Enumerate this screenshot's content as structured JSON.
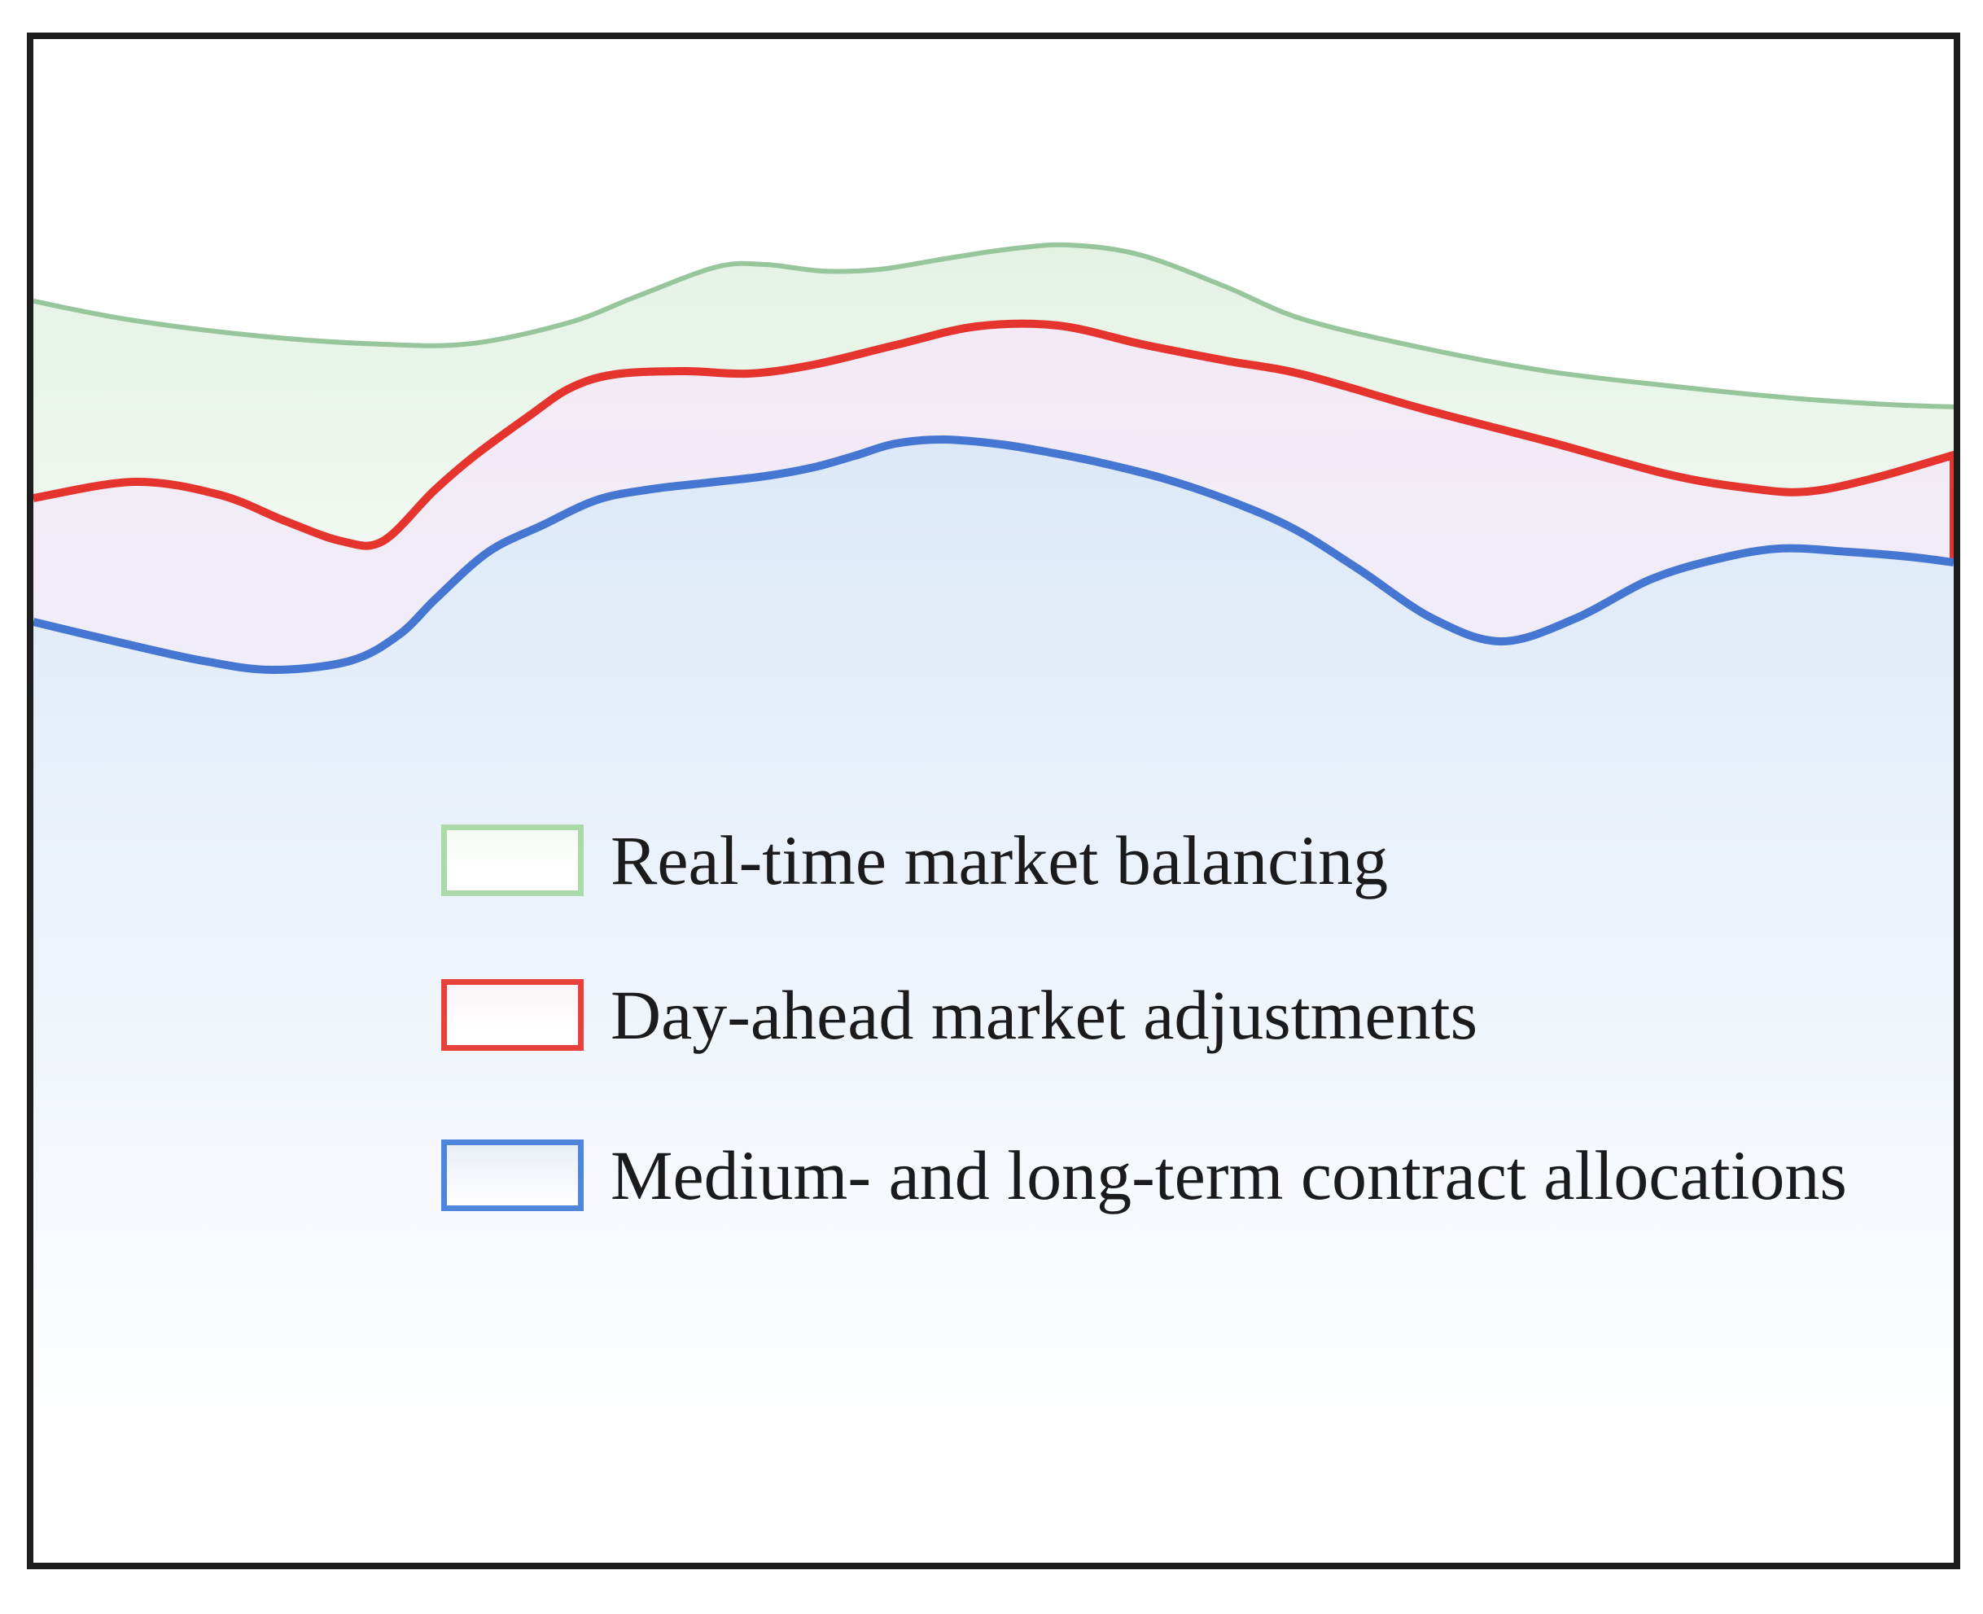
{
  "figure": {
    "frame_color": "#1d1d1d",
    "background_color": "#ffffff"
  },
  "legend": {
    "items": [
      {
        "id": "realtime",
        "label": "Real-time market balancing",
        "swatch_border": "#abdaa9"
      },
      {
        "id": "dayahead",
        "label": "Day-ahead market adjustments",
        "swatch_border": "#e8403a"
      },
      {
        "id": "contracts",
        "label": "Medium- and long-term contract allocations",
        "swatch_border": "#4f86dc"
      }
    ]
  },
  "chart_data": {
    "type": "area",
    "title": "",
    "xlabel": "",
    "ylabel": "",
    "axes_visible": false,
    "grid": false,
    "legend_position": "inside-lower-left",
    "coordinate_space": {
      "note": "Qualitative figure with no numeric axes; curves captured as image-pixel coordinates, y increases downward.",
      "plot_area_x": [
        41,
        2400
      ],
      "plot_area_y": [
        48,
        1920
      ]
    },
    "series": [
      {
        "name": "Real-time market balancing",
        "role": "top boundary of green band (band spans down to red curve)",
        "line_color": "#98c69c",
        "line_width": 6,
        "fill_top_color": "rgba(150,205,150,0.26)",
        "fill_bottom_color": "rgba(150,205,150,0.13)",
        "fill_gradient_y": [
          290,
          680
        ],
        "points": [
          [
            41,
            370
          ],
          [
            160,
            393
          ],
          [
            320,
            413
          ],
          [
            470,
            423
          ],
          [
            580,
            422
          ],
          [
            700,
            396
          ],
          [
            780,
            365
          ],
          [
            880,
            328
          ],
          [
            940,
            325
          ],
          [
            1010,
            333
          ],
          [
            1080,
            331
          ],
          [
            1160,
            318
          ],
          [
            1240,
            306
          ],
          [
            1312,
            301
          ],
          [
            1400,
            313
          ],
          [
            1505,
            352
          ],
          [
            1600,
            392
          ],
          [
            1750,
            428
          ],
          [
            1900,
            456
          ],
          [
            2050,
            474
          ],
          [
            2200,
            489
          ],
          [
            2320,
            497
          ],
          [
            2400,
            500
          ]
        ]
      },
      {
        "name": "Day-ahead market adjustments",
        "role": "top boundary of pink band (band spans down to blue curve, closed with red edge at right border)",
        "line_color": "#e5332d",
        "line_width": 10,
        "fill_top_color": "rgba(200,150,210,0.20)",
        "fill_bottom_color": "rgba(185,175,225,0.22)",
        "fill_gradient_y": [
          395,
          830
        ],
        "right_close_to_y": 687,
        "points": [
          [
            41,
            612
          ],
          [
            165,
            592
          ],
          [
            270,
            608
          ],
          [
            350,
            640
          ],
          [
            420,
            665
          ],
          [
            470,
            665
          ],
          [
            533,
            603
          ],
          [
            583,
            560
          ],
          [
            650,
            511
          ],
          [
            700,
            477
          ],
          [
            755,
            460
          ],
          [
            840,
            456
          ],
          [
            920,
            459
          ],
          [
            1000,
            448
          ],
          [
            1100,
            424
          ],
          [
            1200,
            401
          ],
          [
            1300,
            400
          ],
          [
            1403,
            423
          ],
          [
            1505,
            443
          ],
          [
            1600,
            460
          ],
          [
            1750,
            503
          ],
          [
            1900,
            542
          ],
          [
            2050,
            583
          ],
          [
            2150,
            600
          ],
          [
            2220,
            604
          ],
          [
            2300,
            588
          ],
          [
            2400,
            559
          ]
        ]
      },
      {
        "name": "Medium- and long-term contract allocations",
        "role": "top boundary of blue area (fills and fades toward bottom of plot)",
        "line_color": "#4577d2",
        "line_width": 10,
        "fill_top_color": "rgba(140,180,232,0.30)",
        "fill_bottom_color": "rgba(140,180,232,0)",
        "fill_gradient_y": [
          535,
          1790
        ],
        "points": [
          [
            41,
            764
          ],
          [
            150,
            790
          ],
          [
            250,
            812
          ],
          [
            335,
            823
          ],
          [
            430,
            812
          ],
          [
            490,
            780
          ],
          [
            536,
            735
          ],
          [
            600,
            678
          ],
          [
            667,
            645
          ],
          [
            734,
            614
          ],
          [
            800,
            601
          ],
          [
            870,
            593
          ],
          [
            940,
            585
          ],
          [
            1000,
            574
          ],
          [
            1050,
            560
          ],
          [
            1100,
            545
          ],
          [
            1160,
            540
          ],
          [
            1230,
            546
          ],
          [
            1290,
            556
          ],
          [
            1350,
            568
          ],
          [
            1430,
            588
          ],
          [
            1510,
            615
          ],
          [
            1590,
            650
          ],
          [
            1670,
            700
          ],
          [
            1760,
            760
          ],
          [
            1845,
            788
          ],
          [
            1935,
            760
          ],
          [
            2025,
            713
          ],
          [
            2105,
            688
          ],
          [
            2185,
            674
          ],
          [
            2270,
            678
          ],
          [
            2345,
            684
          ],
          [
            2400,
            691
          ]
        ]
      }
    ]
  },
  "legend_layout": {
    "row_tops": [
      1013,
      1203,
      1400
    ]
  }
}
